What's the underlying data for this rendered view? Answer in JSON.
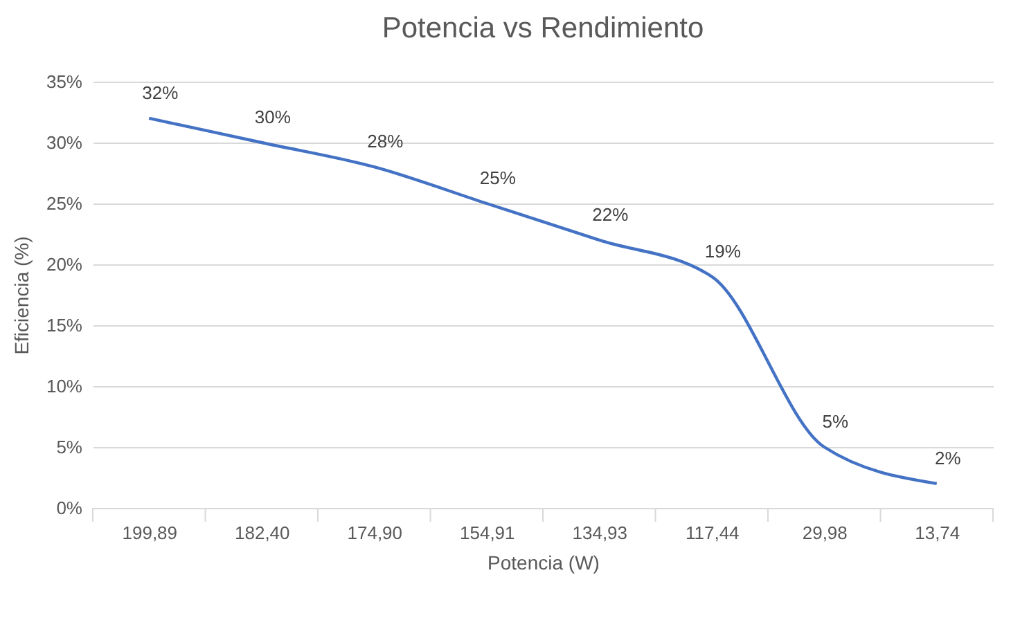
{
  "chart_data": {
    "type": "line",
    "title": "Potencia vs Rendimiento",
    "xlabel": "Potencia (W)",
    "ylabel": "Eficiencia (%)",
    "categories": [
      "199,89",
      "182,40",
      "174,90",
      "154,91",
      "134,93",
      "117,44",
      "29,98",
      "13,74"
    ],
    "series": [
      {
        "color": "#4472c4",
        "values": [
          32,
          30,
          28,
          25,
          22,
          19,
          5,
          2
        ]
      }
    ],
    "ylim": [
      0,
      35
    ],
    "yticks": [
      {
        "value": 0,
        "label": "0%"
      },
      {
        "value": 5,
        "label": "5%"
      },
      {
        "value": 10,
        "label": "10%"
      },
      {
        "value": 15,
        "label": "15%"
      },
      {
        "value": 20,
        "label": "20%"
      },
      {
        "value": 25,
        "label": "25%"
      },
      {
        "value": 30,
        "label": "30%"
      },
      {
        "value": 35,
        "label": "35%"
      }
    ],
    "value_labels": [
      "32%",
      "30%",
      "28%",
      "25%",
      "22%",
      "19%",
      "5%",
      "2%"
    ],
    "grid": "y",
    "legend": false,
    "marker": "none",
    "line_style": "solid"
  }
}
